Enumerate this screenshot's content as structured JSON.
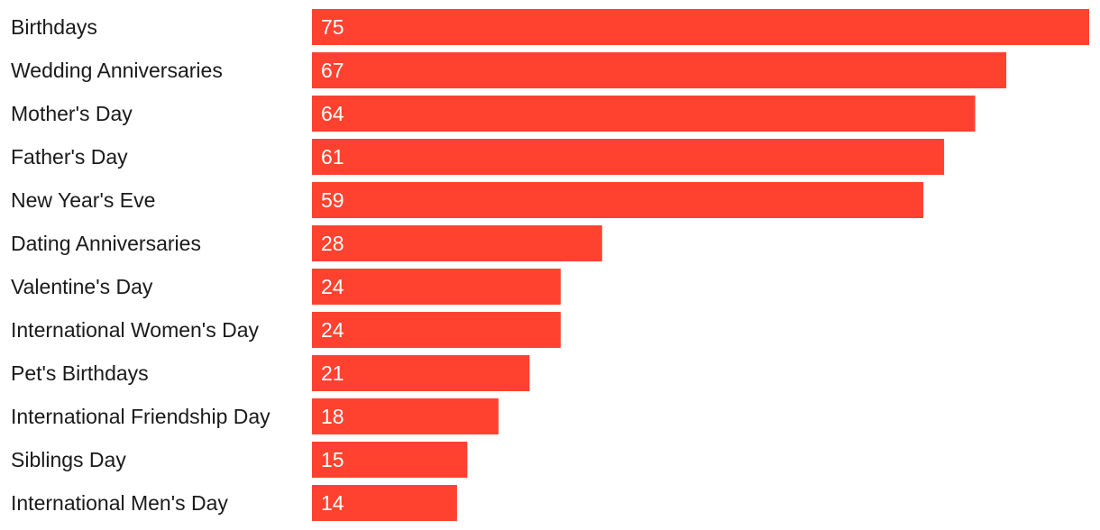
{
  "chart_data": {
    "type": "bar",
    "orientation": "horizontal",
    "categories": [
      "Birthdays",
      "Wedding Anniversaries",
      "Mother's Day",
      "Father's Day",
      "New Year's Eve",
      "Dating Anniversaries",
      "Valentine's Day",
      "International Women's Day",
      "Pet's Birthdays",
      "International Friendship Day",
      "Siblings Day",
      "International Men's Day"
    ],
    "values": [
      75,
      67,
      64,
      61,
      59,
      28,
      24,
      24,
      21,
      18,
      15,
      14
    ],
    "value_labels": [
      "75",
      "67",
      "64",
      "61",
      "59",
      "28",
      "24",
      "24",
      "21",
      "18",
      "15",
      "14"
    ],
    "title": "",
    "xlabel": "",
    "ylabel": "",
    "xlim": [
      0,
      75
    ],
    "grid": false,
    "legend": "none",
    "bar_color": "#ff4230",
    "label_color": "#1a1a1a",
    "value_label_color": "#ffffff"
  }
}
